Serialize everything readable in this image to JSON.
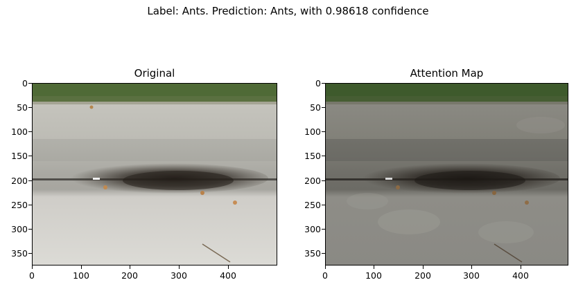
{
  "figure": {
    "suptitle": "Label: Ants. Prediction: Ants, with 0.98618 confidence"
  },
  "panels": [
    {
      "title": "Original",
      "image": "photo of concrete curb with ant swarm and grass strip"
    },
    {
      "title": "Attention Map",
      "image": "same photo darkened with attention overlay"
    }
  ],
  "axes": {
    "y_ticks": [
      "0",
      "50",
      "100",
      "150",
      "200",
      "250",
      "300",
      "350"
    ],
    "x_ticks": [
      "0",
      "100",
      "200",
      "300",
      "400"
    ]
  },
  "colors": {
    "grass": "#4f6a36",
    "concrete_light": "#cfcdc7",
    "concrete_mid": "#b4b3ad",
    "ants": "#2a241f"
  }
}
